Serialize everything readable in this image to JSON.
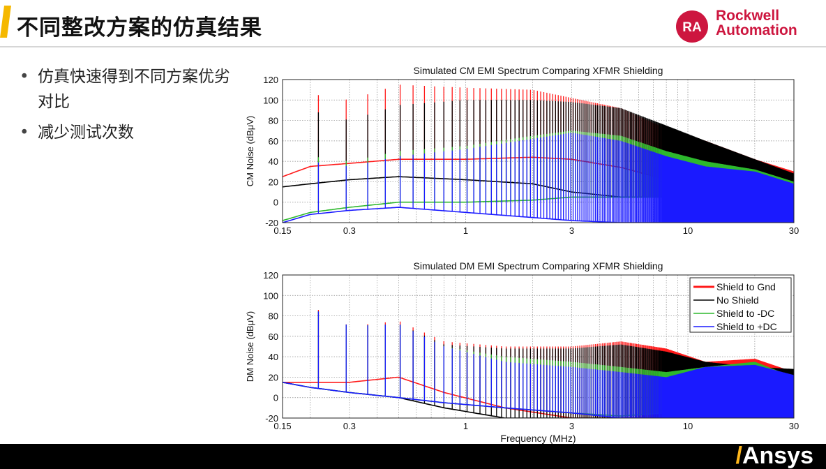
{
  "page": {
    "title": "不同整改方案的仿真结果",
    "accent_color": "#f5b800",
    "bullets": [
      "仿真快速得到不同方案优劣对比",
      "减少测试次数"
    ]
  },
  "logo": {
    "line1": "Rockwell",
    "line2": "Automation",
    "badge": "RA",
    "color": "#cd163f"
  },
  "footer": {
    "brand": "Ansys",
    "brand_mark": "/",
    "mark_color": "#ffb71b"
  },
  "chart_data": [
    {
      "type": "line",
      "title": "Simulated CM EMI Spectrum Comparing XFMR Shielding",
      "xlabel": "",
      "ylabel": "CM Noise (dBμV)",
      "xscale": "log",
      "xlim": [
        0.15,
        30
      ],
      "ylim": [
        -20,
        120
      ],
      "xticks": [
        0.15,
        0.3,
        1,
        3,
        10,
        30
      ],
      "xtick_labels": [
        "0.15",
        "0.3",
        "1",
        "3",
        "10",
        "30"
      ],
      "yticks": [
        -20,
        0,
        20,
        40,
        60,
        80,
        100,
        120
      ],
      "grid": true,
      "harmonic_spacing_mhz": 0.0725,
      "series": [
        {
          "name": "Shield to Gnd",
          "color": "#ff1a1a",
          "x": [
            0.15,
            0.2,
            0.3,
            0.5,
            1,
            2,
            3,
            5,
            8,
            12,
            20,
            30
          ],
          "floor": [
            25,
            35,
            38,
            42,
            42,
            44,
            42,
            34,
            22,
            8,
            -5,
            -10
          ],
          "peaks": [
            70,
            106,
            100,
            115,
            112,
            110,
            102,
            92,
            72,
            60,
            42,
            30
          ]
        },
        {
          "name": "No Shield",
          "color": "#000000",
          "x": [
            0.15,
            0.2,
            0.3,
            0.5,
            1,
            2,
            3,
            5,
            8,
            12,
            20,
            30
          ],
          "floor": [
            15,
            18,
            22,
            25,
            22,
            18,
            10,
            5,
            5,
            10,
            18,
            18
          ],
          "peaks": [
            60,
            90,
            80,
            95,
            100,
            100,
            98,
            92,
            75,
            60,
            42,
            28
          ]
        },
        {
          "name": "Shield to -DC",
          "color": "#2db82d",
          "x": [
            0.15,
            0.2,
            0.3,
            0.5,
            1,
            2,
            3,
            5,
            8,
            12,
            20,
            30
          ],
          "floor": [
            -18,
            -10,
            -5,
            0,
            0,
            2,
            5,
            5,
            5,
            5,
            0,
            -5
          ],
          "peaks": [
            20,
            45,
            40,
            50,
            55,
            65,
            70,
            65,
            50,
            40,
            32,
            20
          ]
        },
        {
          "name": "Shield to +DC",
          "color": "#1a1aff",
          "x": [
            0.15,
            0.2,
            0.3,
            0.5,
            1,
            2,
            3,
            5,
            8,
            12,
            20,
            30
          ],
          "floor": [
            -20,
            -12,
            -8,
            -5,
            -10,
            -15,
            -18,
            -20,
            -20,
            -20,
            -20,
            -20
          ],
          "peaks": [
            15,
            40,
            35,
            45,
            52,
            62,
            68,
            60,
            45,
            35,
            30,
            18
          ]
        }
      ]
    },
    {
      "type": "line",
      "title": "Simulated DM EMI Spectrum Comparing XFMR Shielding",
      "xlabel": "Frequency (MHz)",
      "ylabel": "DM Noise (dBμV)",
      "xscale": "log",
      "xlim": [
        0.15,
        30
      ],
      "ylim": [
        -20,
        120
      ],
      "xticks": [
        0.15,
        0.3,
        1,
        3,
        10,
        30
      ],
      "xtick_labels": [
        "0.15",
        "0.3",
        "1",
        "3",
        "10",
        "30"
      ],
      "yticks": [
        -20,
        0,
        20,
        40,
        60,
        80,
        100,
        120
      ],
      "grid": true,
      "legend_position": "top-right",
      "harmonic_spacing_mhz": 0.0725,
      "series": [
        {
          "name": "Shield to Gnd",
          "color": "#ff1a1a",
          "x": [
            0.15,
            0.2,
            0.3,
            0.5,
            0.8,
            1.5,
            3,
            5,
            8,
            12,
            20,
            30
          ],
          "floor": [
            15,
            15,
            15,
            20,
            5,
            -10,
            -20,
            -20,
            -20,
            -20,
            -20,
            -20
          ],
          "peaks": [
            30,
            90,
            70,
            75,
            55,
            50,
            50,
            55,
            48,
            35,
            38,
            25
          ]
        },
        {
          "name": "No Shield",
          "color": "#000000",
          "x": [
            0.15,
            0.2,
            0.3,
            0.5,
            0.8,
            1.5,
            3,
            5,
            8,
            12,
            20,
            30
          ],
          "floor": [
            15,
            10,
            5,
            0,
            -10,
            -20,
            -20,
            -20,
            -20,
            -20,
            -20,
            -20
          ],
          "peaks": [
            28,
            88,
            70,
            72,
            52,
            48,
            48,
            52,
            45,
            35,
            30,
            28
          ]
        },
        {
          "name": "Shield to -DC",
          "color": "#2db82d",
          "x": [
            0.15,
            0.2,
            0.3,
            0.5,
            0.8,
            1.5,
            3,
            5,
            8,
            12,
            20,
            30
          ],
          "floor": [
            15,
            10,
            5,
            0,
            -5,
            -10,
            -15,
            -18,
            -15,
            -10,
            -5,
            -5
          ],
          "peaks": [
            28,
            88,
            70,
            72,
            50,
            40,
            35,
            30,
            25,
            30,
            35,
            20
          ]
        },
        {
          "name": "Shield to +DC",
          "color": "#1a1aff",
          "x": [
            0.15,
            0.2,
            0.3,
            0.5,
            0.8,
            1.5,
            3,
            5,
            8,
            12,
            20,
            30
          ],
          "floor": [
            15,
            10,
            5,
            0,
            -5,
            -10,
            -15,
            -20,
            -20,
            -20,
            -20,
            -20
          ],
          "peaks": [
            28,
            88,
            70,
            72,
            50,
            35,
            30,
            25,
            20,
            30,
            32,
            22
          ]
        }
      ]
    }
  ]
}
